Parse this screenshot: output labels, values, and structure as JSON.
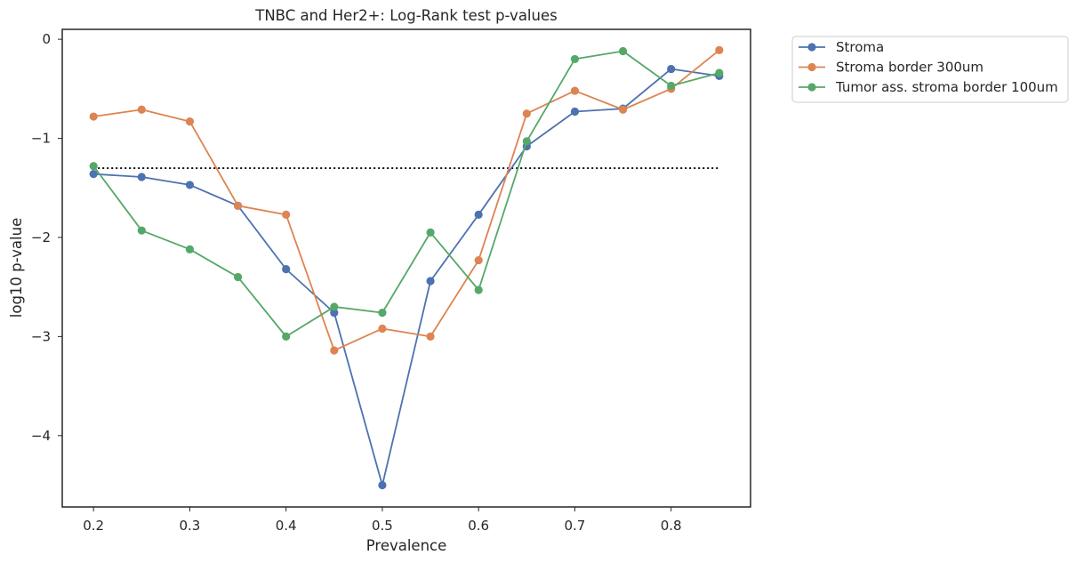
{
  "chart_data": {
    "type": "line",
    "title": "TNBC and Her2+: Log-Rank test p-values",
    "xlabel": "Prevalence",
    "ylabel": "log10 p-value",
    "x": [
      0.2,
      0.25,
      0.3,
      0.35,
      0.4,
      0.45,
      0.5,
      0.55,
      0.6,
      0.65,
      0.7,
      0.75,
      0.8,
      0.85
    ],
    "xticks": [
      "0.2",
      "0.3",
      "0.4",
      "0.5",
      "0.6",
      "0.7",
      "0.8"
    ],
    "yticks": [
      "0",
      "−1",
      "−2",
      "−3",
      "−4"
    ],
    "xlim": [
      0.1675,
      0.8825
    ],
    "ylim": [
      -4.72,
      0.1
    ],
    "threshold": {
      "value": -1.301,
      "x_range": [
        0.2,
        0.85
      ],
      "style": "dotted",
      "color": "#000000"
    },
    "grid": false,
    "legend_position": "outside-right-top",
    "series": [
      {
        "name": "Stroma",
        "color": "#4c72b0",
        "values": [
          -1.36,
          -1.39,
          -1.47,
          -1.68,
          -2.32,
          -2.76,
          -4.5,
          -2.44,
          -1.77,
          -1.08,
          -0.73,
          -0.7,
          -0.3,
          -0.37
        ]
      },
      {
        "name": "Stroma border 300um",
        "color": "#dd8452",
        "values": [
          -0.78,
          -0.71,
          -0.83,
          -1.68,
          -1.77,
          -3.14,
          -2.92,
          -3.0,
          -2.23,
          -0.75,
          -0.52,
          -0.71,
          -0.5,
          -0.11
        ]
      },
      {
        "name": "Tumor ass. stroma border 100um",
        "color": "#55a868",
        "values": [
          -1.28,
          -1.93,
          -2.12,
          -2.4,
          -3.0,
          -2.7,
          -2.76,
          -1.95,
          -2.53,
          -1.03,
          -0.2,
          -0.12,
          -0.47,
          -0.34
        ]
      }
    ]
  }
}
